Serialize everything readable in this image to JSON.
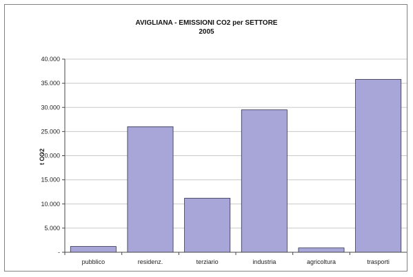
{
  "chart_data": {
    "type": "bar",
    "title": "AVIGLIANA - EMISSIONI CO2 per SETTORE",
    "subtitle": "2005",
    "ylabel": "t CO2",
    "xlabel": "",
    "categories": [
      "pubblico",
      "residenz.",
      "terziario",
      "industria",
      "agricoltura",
      "trasporti"
    ],
    "values": [
      1200,
      26000,
      11200,
      29500,
      900,
      35800
    ],
    "ylim": [
      0,
      40000
    ],
    "yticks": [
      0,
      5000,
      10000,
      15000,
      20000,
      25000,
      30000,
      35000,
      40000
    ],
    "ytick_labels": [
      "-",
      "5.000",
      "10.000",
      "15.000",
      "20.000",
      "25.000",
      "30.000",
      "35.000",
      "40.000"
    ],
    "grid": true,
    "legend": "none",
    "colors": {
      "bar_fill": "#a8a6d8",
      "bar_stroke": "#2e2e4a",
      "grid": "#c8c8c8",
      "axis": "#444444"
    }
  }
}
